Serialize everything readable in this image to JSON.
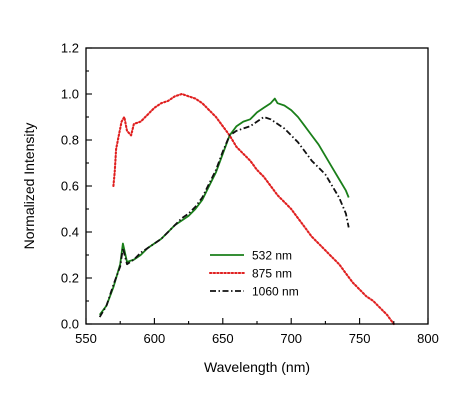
{
  "chart_data": {
    "type": "line",
    "title": "",
    "xlabel": "Wavelength (nm)",
    "ylabel": "Normalized Intensity",
    "xlim": [
      550,
      800
    ],
    "ylim": [
      0.0,
      1.2
    ],
    "xticks": [
      "550",
      "600",
      "650",
      "700",
      "750",
      "800"
    ],
    "yticks": [
      "0.0",
      "0.2",
      "0.4",
      "0.6",
      "0.8",
      "1.0",
      "1.2"
    ],
    "grid": false,
    "legend_position": "center-bottom",
    "series": [
      {
        "name": "532 nm",
        "color": "#1a7f1a",
        "style": "solid",
        "x": [
          560,
          565,
          570,
          575,
          577,
          580,
          585,
          590,
          595,
          600,
          605,
          610,
          615,
          620,
          625,
          630,
          635,
          640,
          645,
          650,
          655,
          660,
          665,
          670,
          675,
          680,
          685,
          688,
          690,
          695,
          700,
          705,
          710,
          715,
          720,
          725,
          730,
          735,
          740,
          742
        ],
        "y": [
          0.04,
          0.08,
          0.16,
          0.26,
          0.35,
          0.27,
          0.28,
          0.3,
          0.33,
          0.35,
          0.37,
          0.4,
          0.43,
          0.45,
          0.47,
          0.5,
          0.54,
          0.6,
          0.66,
          0.74,
          0.82,
          0.86,
          0.88,
          0.89,
          0.92,
          0.94,
          0.96,
          0.98,
          0.96,
          0.95,
          0.93,
          0.9,
          0.86,
          0.82,
          0.78,
          0.73,
          0.68,
          0.63,
          0.58,
          0.55
        ]
      },
      {
        "name": "875 nm",
        "color": "#e02020",
        "style": "dotted",
        "x": [
          570,
          571,
          572,
          574,
          576,
          578,
          580,
          583,
          585,
          590,
          595,
          600,
          605,
          610,
          615,
          620,
          625,
          630,
          635,
          640,
          645,
          650,
          655,
          660,
          665,
          670,
          675,
          680,
          685,
          690,
          695,
          700,
          705,
          710,
          715,
          720,
          725,
          730,
          735,
          740,
          745,
          750,
          755,
          760,
          765,
          770,
          775
        ],
        "y": [
          0.6,
          0.66,
          0.76,
          0.82,
          0.88,
          0.9,
          0.84,
          0.82,
          0.87,
          0.88,
          0.91,
          0.94,
          0.96,
          0.97,
          0.99,
          1.0,
          0.99,
          0.98,
          0.96,
          0.93,
          0.9,
          0.86,
          0.82,
          0.77,
          0.74,
          0.71,
          0.67,
          0.64,
          0.6,
          0.56,
          0.53,
          0.5,
          0.46,
          0.42,
          0.38,
          0.35,
          0.32,
          0.29,
          0.26,
          0.22,
          0.18,
          0.15,
          0.12,
          0.1,
          0.07,
          0.04,
          0.0
        ]
      },
      {
        "name": "1060 nm",
        "color": "#111111",
        "style": "dashdot",
        "x": [
          560,
          565,
          570,
          575,
          577,
          580,
          585,
          590,
          595,
          600,
          605,
          610,
          615,
          620,
          625,
          630,
          635,
          640,
          645,
          650,
          655,
          660,
          665,
          670,
          675,
          680,
          685,
          690,
          695,
          700,
          705,
          710,
          715,
          720,
          725,
          730,
          735,
          740,
          742
        ],
        "y": [
          0.03,
          0.08,
          0.17,
          0.25,
          0.33,
          0.26,
          0.28,
          0.31,
          0.33,
          0.35,
          0.37,
          0.4,
          0.43,
          0.46,
          0.48,
          0.51,
          0.55,
          0.61,
          0.67,
          0.75,
          0.82,
          0.84,
          0.85,
          0.86,
          0.88,
          0.9,
          0.89,
          0.87,
          0.85,
          0.82,
          0.79,
          0.75,
          0.71,
          0.68,
          0.65,
          0.6,
          0.55,
          0.48,
          0.42
        ]
      }
    ]
  }
}
